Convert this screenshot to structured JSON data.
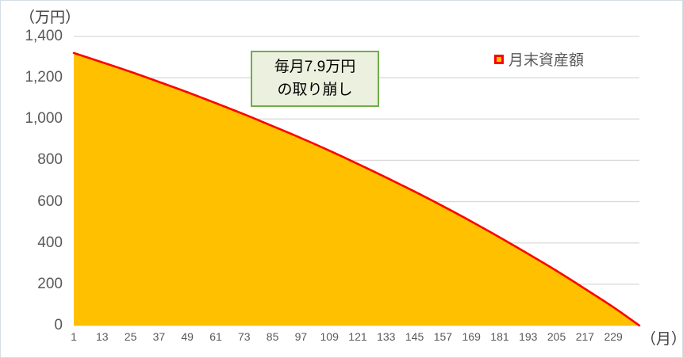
{
  "frame": {
    "border_color": "#D7DEE4",
    "background": "#FFFFFF"
  },
  "chart_data": {
    "type": "area",
    "title": "",
    "y_unit": "（万円）",
    "x_unit": "（月）",
    "ylim": [
      0,
      1400
    ],
    "xlim": [
      1,
      240
    ],
    "grid": "horizontal",
    "legend_position": "top-right",
    "y_ticks": [
      {
        "value": 0,
        "label": "0"
      },
      {
        "value": 200,
        "label": "200"
      },
      {
        "value": 400,
        "label": "400"
      },
      {
        "value": 600,
        "label": "600"
      },
      {
        "value": 800,
        "label": "800"
      },
      {
        "value": 1000,
        "label": "1,000"
      },
      {
        "value": 1200,
        "label": "1,200"
      },
      {
        "value": 1400,
        "label": "1,400"
      }
    ],
    "x_ticks": [
      "1",
      "13",
      "25",
      "37",
      "49",
      "61",
      "73",
      "85",
      "97",
      "109",
      "121",
      "133",
      "145",
      "157",
      "169",
      "181",
      "193",
      "205",
      "217",
      "229"
    ],
    "series": [
      {
        "name": "月末資産額",
        "fill_color": "#FFC000",
        "line_color": "#FF0000",
        "points": [
          {
            "month": 1,
            "value": 1320
          },
          {
            "month": 13,
            "value": 1275
          },
          {
            "month": 25,
            "value": 1229
          },
          {
            "month": 37,
            "value": 1180
          },
          {
            "month": 49,
            "value": 1130
          },
          {
            "month": 61,
            "value": 1077
          },
          {
            "month": 73,
            "value": 1023
          },
          {
            "month": 85,
            "value": 966
          },
          {
            "month": 97,
            "value": 908
          },
          {
            "month": 109,
            "value": 847
          },
          {
            "month": 121,
            "value": 783
          },
          {
            "month": 133,
            "value": 717
          },
          {
            "month": 145,
            "value": 649
          },
          {
            "month": 157,
            "value": 578
          },
          {
            "month": 169,
            "value": 504
          },
          {
            "month": 181,
            "value": 427
          },
          {
            "month": 193,
            "value": 347
          },
          {
            "month": 205,
            "value": 265
          },
          {
            "month": 217,
            "value": 178
          },
          {
            "month": 229,
            "value": 89
          },
          {
            "month": 240,
            "value": 0
          }
        ]
      }
    ],
    "annotation": {
      "line1": "毎月7.9万円",
      "line2": "の取り崩し",
      "border_color": "#70AD47",
      "fill_color": "#EBF1DE"
    },
    "colors": {
      "gridline": "#D9D9D9",
      "tick_label": "#595959",
      "unit_label": "#404040"
    }
  }
}
